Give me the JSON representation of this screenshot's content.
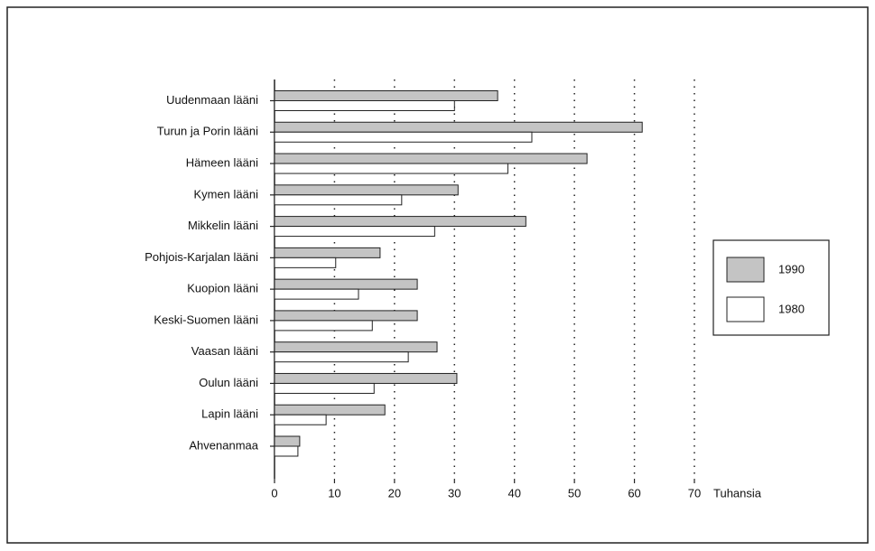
{
  "chart_data": {
    "type": "bar",
    "orientation": "horizontal",
    "x_label": "Tuhansia",
    "categories": [
      "Uudenmaan lääni",
      "Turun ja Porin lääni",
      "Hämeen lääni",
      "Kymen lääni",
      "Mikkelin lääni",
      "Pohjois-Karjalan lääni",
      "Kuopion lääni",
      "Keski-Suomen lääni",
      "Vaasan lääni",
      "Oulun lääni",
      "Lapin lääni",
      "Ahvenanmaa"
    ],
    "series": [
      {
        "name": "1990",
        "color": "#c4c4c4",
        "values": [
          37.2,
          61.3,
          52.1,
          30.6,
          41.9,
          17.6,
          23.8,
          23.8,
          27.1,
          30.4,
          18.4,
          4.2
        ]
      },
      {
        "name": "1980",
        "color": "#ffffff",
        "values": [
          30,
          42.9,
          38.9,
          21.2,
          26.7,
          10.2,
          14,
          16.3,
          22.3,
          16.6,
          8.6,
          3.9
        ]
      }
    ],
    "xlim": [
      0,
      70
    ],
    "xticks": [
      0,
      10,
      20,
      30,
      40,
      50,
      60,
      70
    ],
    "grid": true,
    "legend": "right"
  }
}
